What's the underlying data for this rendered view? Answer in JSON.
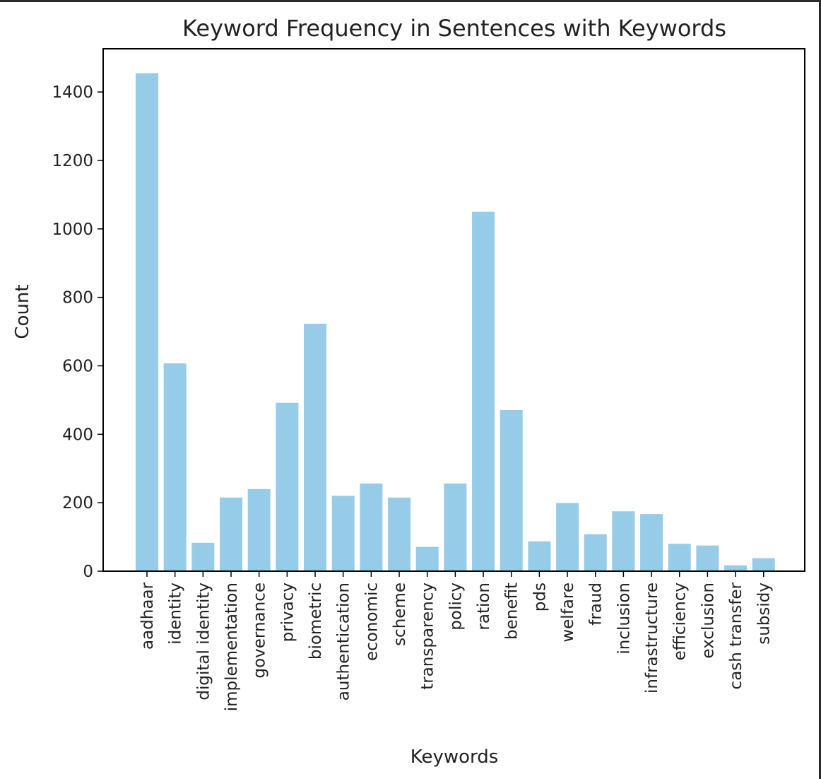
{
  "chart_data": {
    "type": "bar",
    "title": "Keyword Frequency in Sentences with Keywords",
    "xlabel": "Keywords",
    "ylabel": "Count",
    "ylim": [
      0,
      1540
    ],
    "yticks": [
      0,
      200,
      400,
      600,
      800,
      1000,
      1200,
      1400
    ],
    "bar_color": "#97cce8",
    "categories": [
      "aadhaar",
      "identity",
      "digital identity",
      "implementation",
      "governance",
      "privacy",
      "biometric",
      "authentication",
      "economic",
      "scheme",
      "transparency",
      "policy",
      "ration",
      "benefit",
      "pds",
      "welfare",
      "fraud",
      "inclusion",
      "infrastructure",
      "efficiency",
      "exclusion",
      "cash transfer",
      "subsidy"
    ],
    "values": [
      1455,
      607,
      83,
      215,
      240,
      492,
      723,
      220,
      256,
      215,
      71,
      256,
      1050,
      471,
      87,
      199,
      108,
      175,
      167,
      80,
      75,
      17,
      38
    ],
    "grid": false,
    "legend": "none"
  }
}
